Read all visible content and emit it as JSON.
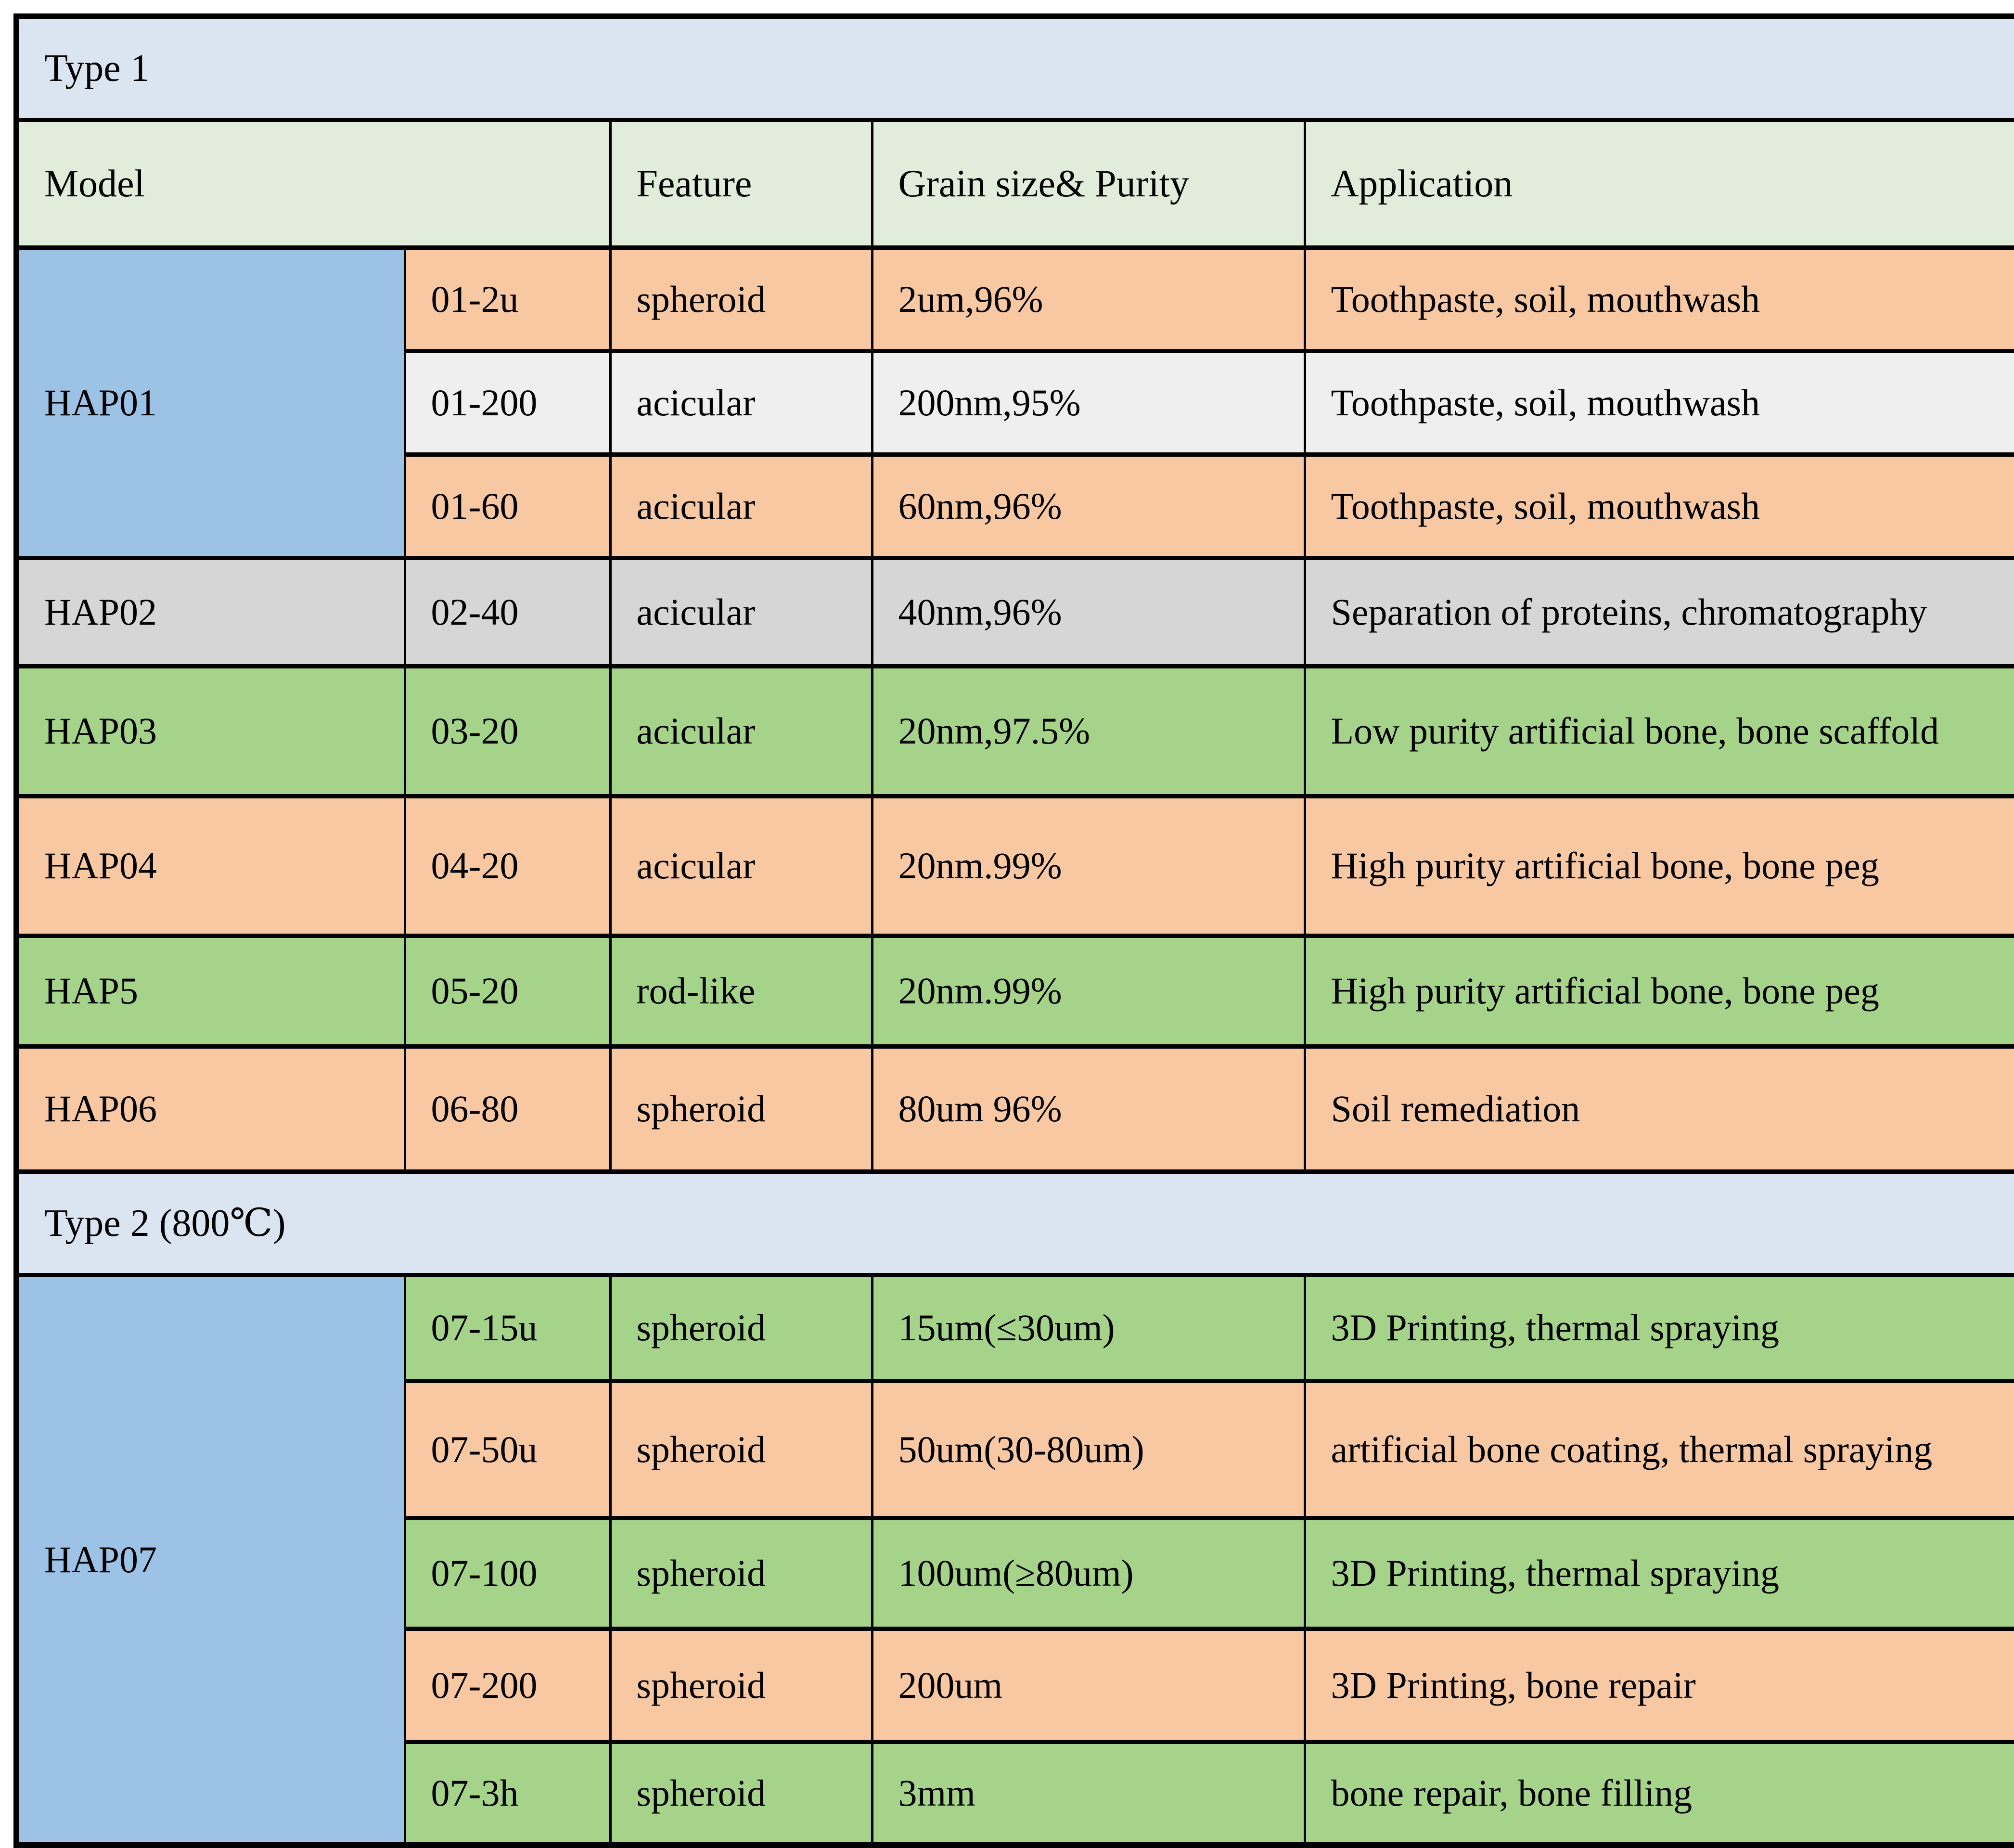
{
  "palette": {
    "section_bg": "#dbe5f1",
    "header_bg": "#e2ecda",
    "group_bg": "#9cc2e5",
    "orange": "#f8c8a2",
    "green": "#a5d38a",
    "gray": "#d6d6d6",
    "offwhite": "#efefef",
    "border": "#000000"
  },
  "sections": [
    {
      "title": "Type 1",
      "header": {
        "model": "Model",
        "feature": "Feature",
        "grain": "Grain size& Purity",
        "application": "Application"
      },
      "groups": [
        {
          "model": "HAP01",
          "model_tone": "group_bg",
          "rows": [
            {
              "sub": "01-2u",
              "feature": "spheroid",
              "grain": "2um,96%",
              "application": "Toothpaste, soil, mouthwash",
              "tone": "orange"
            },
            {
              "sub": "01-200",
              "feature": "acicular",
              "grain": "200nm,95%",
              "application": "Toothpaste, soil, mouthwash",
              "tone": "offwhite"
            },
            {
              "sub": "01-60",
              "feature": "acicular",
              "grain": "60nm,96%",
              "application": "Toothpaste, soil, mouthwash",
              "tone": "orange"
            }
          ]
        },
        {
          "model": "HAP02",
          "model_tone": "gray",
          "rows": [
            {
              "sub": "02-40",
              "feature": "acicular",
              "grain": "40nm,96%",
              "application": "Separation of proteins, chromatography",
              "tone": "gray"
            }
          ]
        },
        {
          "model": "HAP03",
          "model_tone": "green",
          "rows": [
            {
              "sub": "03-20",
              "feature": "acicular",
              "grain": "20nm,97.5%",
              "application": "Low purity artificial bone, bone scaffold",
              "tone": "green"
            }
          ]
        },
        {
          "model": "HAP04",
          "model_tone": "orange",
          "rows": [
            {
              "sub": "04-20",
              "feature": "acicular",
              "grain": "20nm.99%",
              "application": "High purity artificial bone, bone peg",
              "tone": "orange"
            }
          ]
        },
        {
          "model": "HAP5",
          "model_tone": "green",
          "rows": [
            {
              "sub": "05-20",
              "feature": "rod-like",
              "grain": "20nm.99%",
              "application": "High purity artificial bone, bone peg",
              "tone": "green"
            }
          ]
        },
        {
          "model": "HAP06",
          "model_tone": "orange",
          "rows": [
            {
              "sub": "06-80",
              "feature": "spheroid",
              "grain": "80um 96%",
              "application": "Soil remediation",
              "tone": "orange"
            }
          ]
        }
      ]
    },
    {
      "title": "Type 2 (800℃)",
      "groups": [
        {
          "model": "HAP07",
          "model_tone": "group_bg",
          "rows": [
            {
              "sub": "07-15u",
              "feature": "spheroid",
              "grain": "15um(≤30um)",
              "application": "3D Printing, thermal spraying",
              "tone": "green"
            },
            {
              "sub": "07-50u",
              "feature": "spheroid",
              "grain": "50um(30-80um)",
              "application": "artificial bone coating, thermal spraying",
              "tone": "orange"
            },
            {
              "sub": "07-100",
              "feature": "spheroid",
              "grain": "100um(≥80um)",
              "application": "3D Printing, thermal spraying",
              "tone": "green"
            },
            {
              "sub": "07-200",
              "feature": "spheroid",
              "grain": "200um",
              "application": "3D Printing, bone repair",
              "tone": "orange"
            },
            {
              "sub": "07-3h",
              "feature": "spheroid",
              "grain": "3mm",
              "application": "bone repair, bone filling",
              "tone": "green"
            }
          ]
        }
      ]
    }
  ]
}
